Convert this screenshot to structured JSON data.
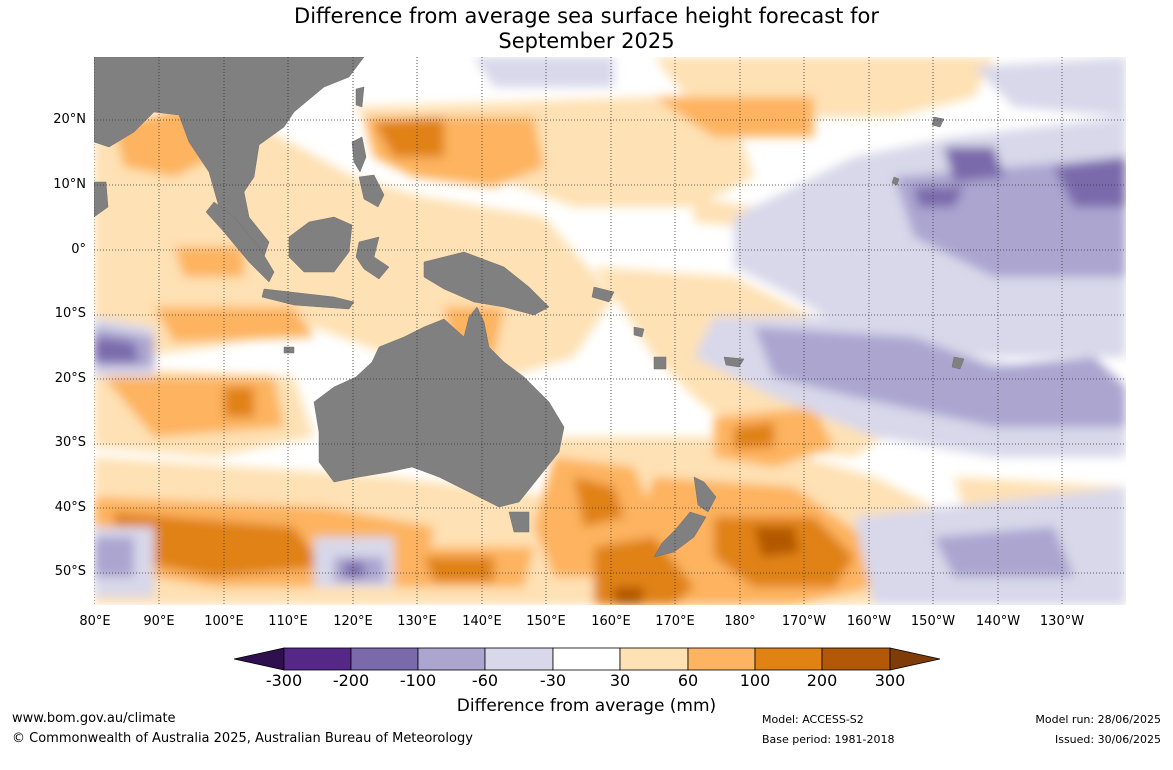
{
  "title": {
    "line1": "Difference from average sea surface height forecast for",
    "line2": "September 2025"
  },
  "map": {
    "lat_labels": [
      "20°N",
      "10°N",
      "0°",
      "10°S",
      "20°S",
      "30°S",
      "40°S",
      "50°S"
    ],
    "lon_labels": [
      "80°E",
      "90°E",
      "100°E",
      "110°E",
      "120°E",
      "130°E",
      "140°E",
      "150°E",
      "160°E",
      "170°E",
      "180°",
      "170°W",
      "160°W",
      "150°W",
      "140°W",
      "130°W"
    ],
    "land_color": "#808080",
    "grid_style": "dotted"
  },
  "colorbar": {
    "ticks": [
      "-300",
      "-200",
      "-100",
      "-60",
      "-30",
      "30",
      "60",
      "100",
      "200",
      "300"
    ],
    "colors": [
      "#2e0f4f",
      "#552887",
      "#7a6aab",
      "#aba5d0",
      "#d8d8ea",
      "#ffffff",
      "#fee1b4",
      "#fdb35f",
      "#e08214",
      "#b35806",
      "#7f3b08"
    ],
    "label": "Difference from average (mm)"
  },
  "footer": {
    "url": "www.bom.gov.au/climate",
    "copyright": "© Commonwealth of Australia 2025, Australian Bureau of Meteorology",
    "model": "Model: ACCESS-S2",
    "base_period": "Base period: 1981-2018",
    "model_run": "Model run: 28/06/2025",
    "issued": "Issued: 30/06/2025"
  }
}
